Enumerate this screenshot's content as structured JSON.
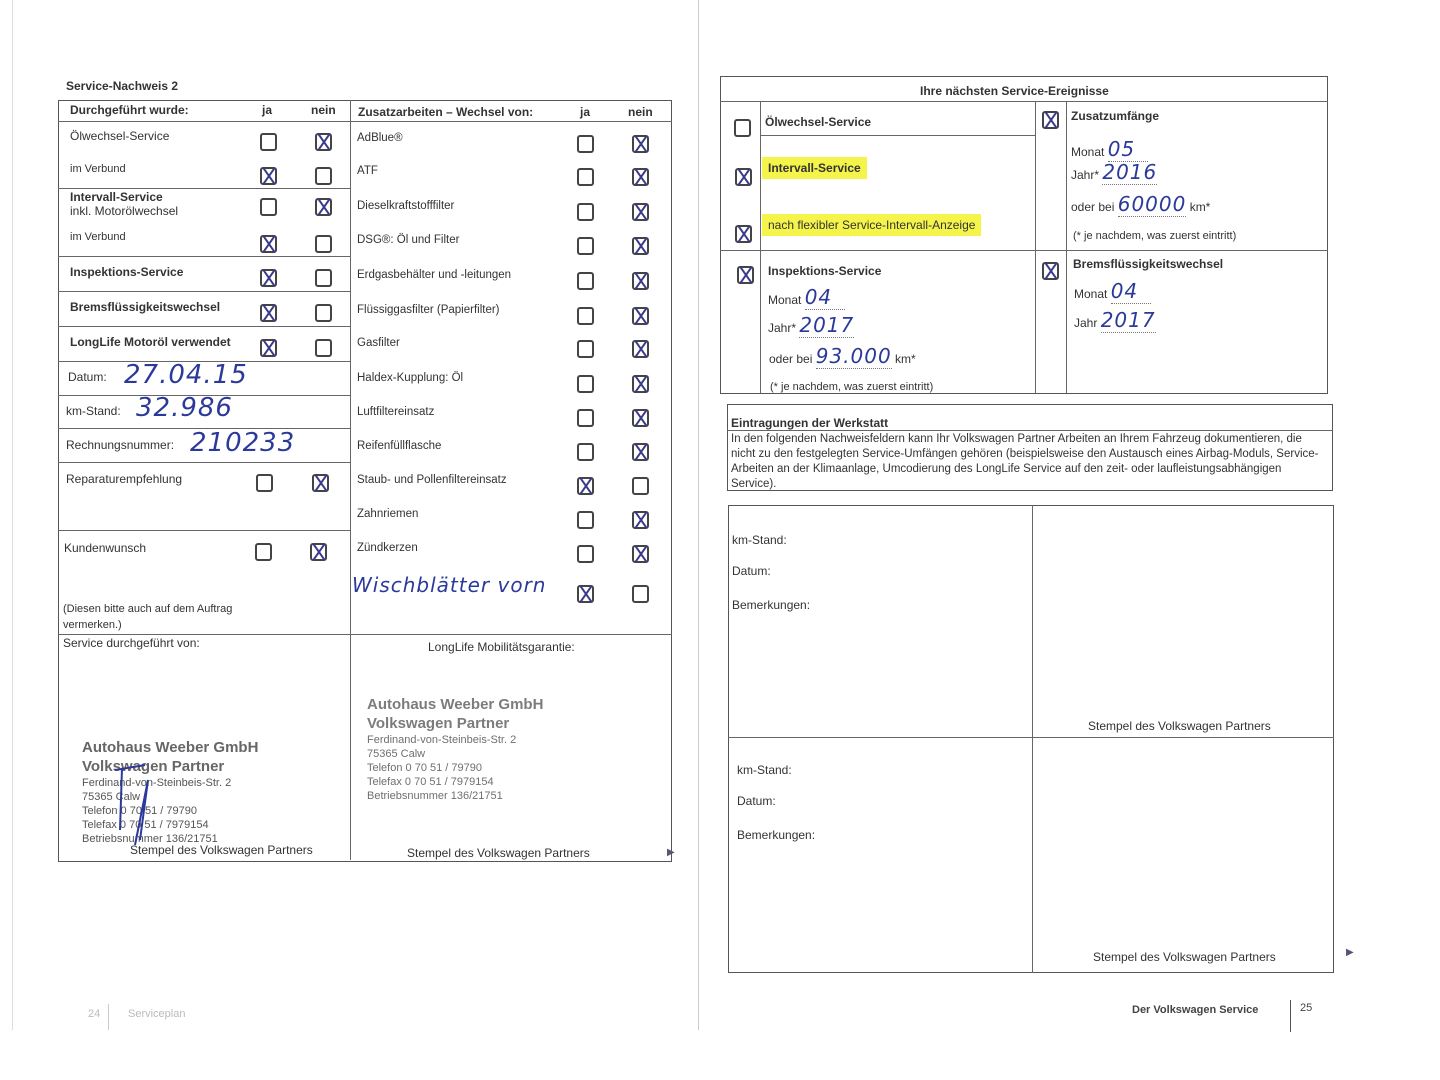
{
  "left_page": {
    "title": "Service-Nachweis 2",
    "left_header": {
      "label": "Durchgeführt wurde:",
      "ja": "ja",
      "nein": "nein"
    },
    "right_header": {
      "label": "Zusatzarbeiten – Wechsel von:",
      "ja": "ja",
      "nein": "nein"
    },
    "left_rows": [
      {
        "label": "Ölwechsel-Service",
        "checked": "nein"
      },
      {
        "label": "im Verbund",
        "checked": "ja"
      },
      {
        "label": "Intervall-Service",
        "sub": "inkl. Motorölwechsel",
        "checked": "nein"
      },
      {
        "label": "im Verbund",
        "checked": "ja"
      },
      {
        "label": "Inspektions-Service",
        "checked": "ja"
      },
      {
        "label": "Bremsflüssigkeitswechsel",
        "checked": "ja"
      },
      {
        "label": "LongLife Motoröl verwendet",
        "checked": "ja"
      }
    ],
    "fields": {
      "datum_label": "Datum:",
      "datum_value": "27.04.15",
      "km_label": "km-Stand:",
      "km_value": "32.986",
      "rechnung_label": "Rechnungsnummer:",
      "rechnung_value": "210233"
    },
    "reparatur": {
      "label": "Reparaturempfehlung",
      "checked": "nein"
    },
    "kundenwunsch": {
      "label": "Kundenwunsch",
      "checked": "nein",
      "note": "(Diesen bitte auch auf dem Auftrag vermerken.)"
    },
    "right_rows": [
      {
        "label": "AdBlue®",
        "checked": "nein"
      },
      {
        "label": "ATF",
        "checked": "nein"
      },
      {
        "label": "Dieselkraftstofffilter",
        "checked": "nein"
      },
      {
        "label": "DSG®: Öl und Filter",
        "checked": "nein"
      },
      {
        "label": "Erdgasbehälter und -leitungen",
        "checked": "nein"
      },
      {
        "label": "Flüssiggasfilter (Papierfilter)",
        "checked": "nein"
      },
      {
        "label": "Gasfilter",
        "checked": "nein"
      },
      {
        "label": "Haldex-Kupplung: Öl",
        "checked": "nein"
      },
      {
        "label": "Luftfiltereinsatz",
        "checked": "nein"
      },
      {
        "label": "Reifenfüllflasche",
        "checked": "nein"
      },
      {
        "label": "Staub- und Pollenfiltereinsatz",
        "checked": "ja"
      },
      {
        "label": "Zahnriemen",
        "checked": "nein"
      },
      {
        "label": "Zündkerzen",
        "checked": "nein"
      },
      {
        "label": "Wischblätter vorn",
        "checked": "ja",
        "handwritten": true
      }
    ],
    "service_by_label": "Service durchgeführt von:",
    "mobility_label": "LongLife Mobilitätsgarantie:",
    "stamp_caption": "Stempel des Volkswagen Partners",
    "stamp": {
      "name": "Autohaus Weeber GmbH",
      "partner": "Volkswagen Partner",
      "street": "Ferdinand-von-Steinbeis-Str. 2",
      "city": "75365 Calw",
      "phone": "Telefon 0 70 51 / 79790",
      "fax": "Telefax 0 70 51 / 7979154",
      "betrieb": "Betriebsnummer 136/21751"
    },
    "footer": {
      "page": "24",
      "section": "Serviceplan"
    }
  },
  "right_page": {
    "header": "Ihre nächsten Service-Ereignisse",
    "oelwechsel": {
      "label": "Ölwechsel-Service",
      "checked": false
    },
    "intervall": {
      "label": "Intervall-Service",
      "checked": true
    },
    "flexibel": {
      "label": "nach flexibler Service-Intervall-Anzeige",
      "checked": true
    },
    "highlight_color": "#f4f44a",
    "zusatz": {
      "label": "Zusatzumfänge",
      "checked": true,
      "monat_label": "Monat",
      "monat": "05",
      "jahr_label": "Jahr*",
      "jahr": "2016",
      "km_label": "oder bei",
      "km": "60000",
      "km_unit": "km*",
      "note": "(* je nachdem, was zuerst eintritt)"
    },
    "inspektion": {
      "label": "Inspektions-Service",
      "checked": true,
      "monat_label": "Monat",
      "monat": "04",
      "jahr_label": "Jahr*",
      "jahr": "2017",
      "km_label": "oder bei",
      "km": "93.000",
      "km_unit": "km*",
      "note": "(* je nachdem, was zuerst eintritt)"
    },
    "brems": {
      "label": "Bremsflüssigkeitswechsel",
      "checked": true,
      "monat_label": "Monat",
      "monat": "04",
      "jahr_label": "Jahr",
      "jahr": "2017"
    },
    "werkstatt": {
      "title": "Eintragungen der Werkstatt",
      "text": "In den folgenden Nachweisfeldern kann Ihr Volkswagen Partner Arbeiten an Ihrem Fahrzeug dokumentieren, die nicht zu den festgelegten Service-Umfängen gehören (beispielsweise den Austausch eines Airbag-Moduls, Service-Arbeiten an der Klimaanlage, Umcodierung des LongLife Service auf den zeit- oder laufleistungsabhängigen Service)."
    },
    "entry_labels": {
      "km": "km-Stand:",
      "datum": "Datum:",
      "bemerkungen": "Bemerkungen:"
    },
    "stamp_caption": "Stempel des Volkswagen Partners",
    "footer": {
      "section": "Der Volkswagen Service",
      "page": "25"
    }
  }
}
